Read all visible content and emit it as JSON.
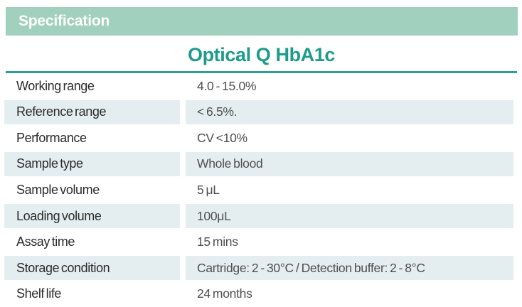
{
  "header": {
    "badge_label": "Specification"
  },
  "title": "Optical Q HbA1c",
  "colors": {
    "badge_green": "#a1d0bf",
    "accent_teal": "#1d9c8b",
    "rule_teal": "#2d9e94",
    "row_highlight": "#e4eef1",
    "label_text": "#2b2b2b",
    "value_text": "#4f4f4f"
  },
  "table": {
    "rows": [
      {
        "label": "Working range",
        "value": "4.0 - 15.0%"
      },
      {
        "label": "Reference range",
        "value": "< 6.5%."
      },
      {
        "label": "Performance",
        "value": "CV <10%"
      },
      {
        "label": "Sample type",
        "value": "Whole blood"
      },
      {
        "label": "Sample volume",
        "value": "5 μL"
      },
      {
        "label": "Loading volume",
        "value": "100μL"
      },
      {
        "label": "Assay time",
        "value": "15 mins"
      },
      {
        "label": "Storage condition",
        "value": "Cartridge: 2 - 30°C  /  Detection buffer: 2 - 8°C"
      },
      {
        "label": "Shelf life",
        "value": "24 months"
      }
    ]
  }
}
